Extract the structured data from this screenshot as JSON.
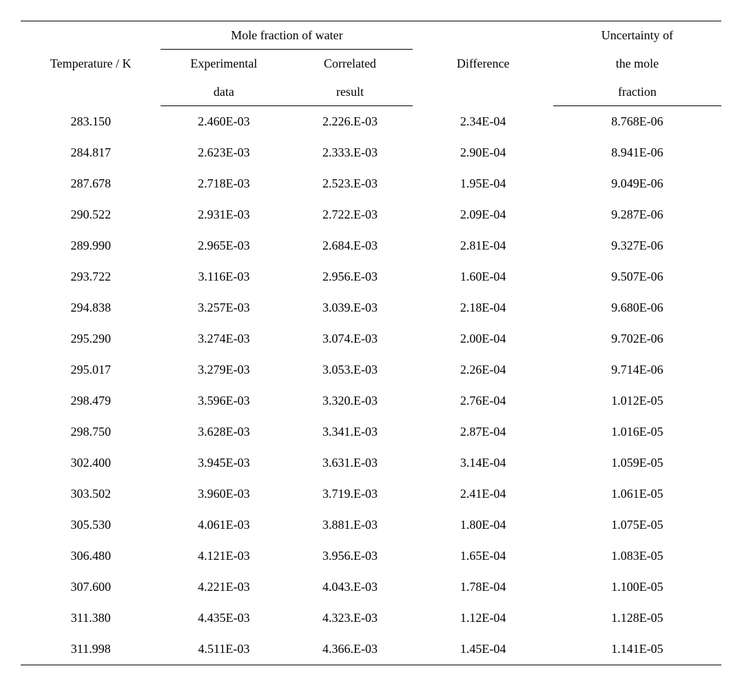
{
  "table": {
    "type": "table",
    "font_family": "serif",
    "font_size_pt": 14,
    "text_color": "#000000",
    "background_color": "#ffffff",
    "border_color": "#000000",
    "border_width_outer": 1.5,
    "border_width_inner": 1.0,
    "row_line_height": 2.5,
    "header_line_height": 1.8,
    "column_widths_pct": [
      20,
      18,
      18,
      20,
      24
    ],
    "columns": {
      "group_mole": "Mole fraction of water",
      "temp": "Temperature / K",
      "exp_l1": "Experimental",
      "exp_l2": "data",
      "corr_l1": "Correlated",
      "corr_l2": "result",
      "diff": "Difference",
      "unc_l1": "Uncertainty of",
      "unc_l2": "the mole",
      "unc_l3": "fraction"
    },
    "rows": [
      {
        "temp": "283.150",
        "exp": "2.460E-03",
        "corr": "2.226.E-03",
        "diff": "2.34E-04",
        "unc": "8.768E-06"
      },
      {
        "temp": "284.817",
        "exp": "2.623E-03",
        "corr": "2.333.E-03",
        "diff": "2.90E-04",
        "unc": "8.941E-06"
      },
      {
        "temp": "287.678",
        "exp": "2.718E-03",
        "corr": "2.523.E-03",
        "diff": "1.95E-04",
        "unc": "9.049E-06"
      },
      {
        "temp": "290.522",
        "exp": "2.931E-03",
        "corr": "2.722.E-03",
        "diff": "2.09E-04",
        "unc": "9.287E-06"
      },
      {
        "temp": "289.990",
        "exp": "2.965E-03",
        "corr": "2.684.E-03",
        "diff": "2.81E-04",
        "unc": "9.327E-06"
      },
      {
        "temp": "293.722",
        "exp": "3.116E-03",
        "corr": "2.956.E-03",
        "diff": "1.60E-04",
        "unc": "9.507E-06"
      },
      {
        "temp": "294.838",
        "exp": "3.257E-03",
        "corr": "3.039.E-03",
        "diff": "2.18E-04",
        "unc": "9.680E-06"
      },
      {
        "temp": "295.290",
        "exp": "3.274E-03",
        "corr": "3.074.E-03",
        "diff": "2.00E-04",
        "unc": "9.702E-06"
      },
      {
        "temp": "295.017",
        "exp": "3.279E-03",
        "corr": "3.053.E-03",
        "diff": "2.26E-04",
        "unc": "9.714E-06"
      },
      {
        "temp": "298.479",
        "exp": "3.596E-03",
        "corr": "3.320.E-03",
        "diff": "2.76E-04",
        "unc": "1.012E-05"
      },
      {
        "temp": "298.750",
        "exp": "3.628E-03",
        "corr": "3.341.E-03",
        "diff": "2.87E-04",
        "unc": "1.016E-05"
      },
      {
        "temp": "302.400",
        "exp": "3.945E-03",
        "corr": "3.631.E-03",
        "diff": "3.14E-04",
        "unc": "1.059E-05"
      },
      {
        "temp": "303.502",
        "exp": "3.960E-03",
        "corr": "3.719.E-03",
        "diff": "2.41E-04",
        "unc": "1.061E-05"
      },
      {
        "temp": "305.530",
        "exp": "4.061E-03",
        "corr": "3.881.E-03",
        "diff": "1.80E-04",
        "unc": "1.075E-05"
      },
      {
        "temp": "306.480",
        "exp": "4.121E-03",
        "corr": "3.956.E-03",
        "diff": "1.65E-04",
        "unc": "1.083E-05"
      },
      {
        "temp": "307.600",
        "exp": "4.221E-03",
        "corr": "4.043.E-03",
        "diff": "1.78E-04",
        "unc": "1.100E-05"
      },
      {
        "temp": "311.380",
        "exp": "4.435E-03",
        "corr": "4.323.E-03",
        "diff": "1.12E-04",
        "unc": "1.128E-05"
      },
      {
        "temp": "311.998",
        "exp": "4.511E-03",
        "corr": "4.366.E-03",
        "diff": "1.45E-04",
        "unc": "1.141E-05"
      }
    ]
  }
}
